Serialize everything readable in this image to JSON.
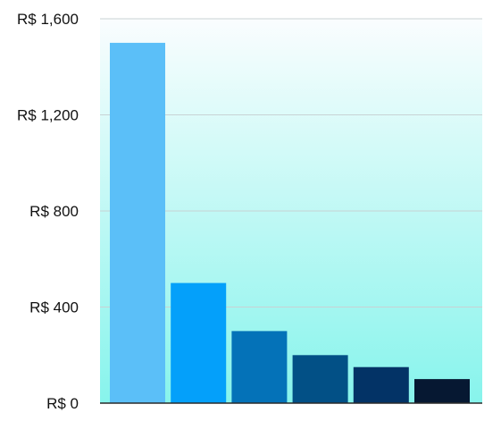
{
  "chart_data": {
    "type": "bar",
    "title": "",
    "xlabel": "",
    "ylabel": "",
    "categories": [
      "",
      "",
      "",
      "",
      "",
      ""
    ],
    "values": [
      1500,
      500,
      300,
      200,
      150,
      100
    ],
    "ylim": [
      0,
      1600
    ],
    "yticks": [
      0,
      400,
      800,
      1200,
      1600
    ],
    "ytick_labels": [
      "R$ 0",
      "R$ 400",
      "R$ 800",
      "R$ 1,200",
      "R$ 1,600"
    ],
    "grid": true,
    "legend": "none",
    "bar_colors": [
      "#5bbff8",
      "#04a0fa",
      "#0472b8",
      "#025086",
      "#033366",
      "#061832"
    ],
    "plot_background": {
      "top": "#fafdfe",
      "bottom": "#87f4ec"
    },
    "gridline_color": "#c8d2d4",
    "axis_color": "#2a2a2a"
  }
}
